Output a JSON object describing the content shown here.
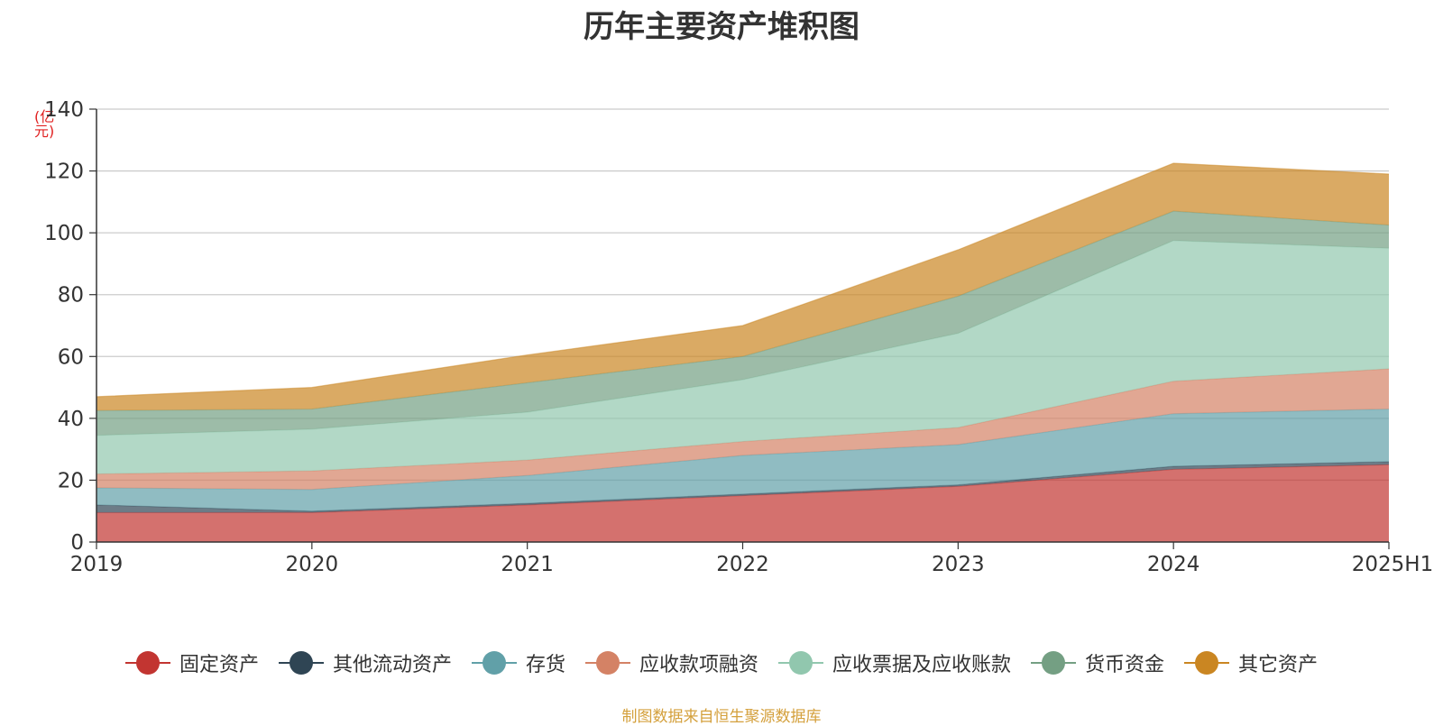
{
  "chart_data": {
    "type": "area",
    "stacked": true,
    "title": "历年主要资产堆积图",
    "unit_label": "(亿元)",
    "x": [
      "2019",
      "2020",
      "2021",
      "2022",
      "2023",
      "2024",
      "2025H1"
    ],
    "ylim": [
      0,
      140
    ],
    "yticks": [
      0,
      20,
      40,
      60,
      80,
      100,
      120,
      140
    ],
    "grid": true,
    "legend_position": "bottom",
    "series": [
      {
        "name": "固定资产",
        "color": "#c23531",
        "values": [
          9.5,
          9.5,
          12,
          15,
          18,
          23.5,
          25
        ]
      },
      {
        "name": "其他流动资产",
        "color": "#2f4554",
        "values": [
          2.5,
          0.5,
          0.5,
          0.5,
          0.5,
          1,
          1
        ]
      },
      {
        "name": "存货",
        "color": "#61a0a8",
        "values": [
          5.5,
          7,
          9,
          12.5,
          13,
          17,
          17
        ]
      },
      {
        "name": "应收款项融资",
        "color": "#d48265",
        "values": [
          4.5,
          6,
          5,
          4.5,
          5.5,
          10.5,
          13
        ]
      },
      {
        "name": "应收票据及应收账款",
        "color": "#91c7ae",
        "values": [
          12.5,
          13.5,
          15.5,
          20,
          30.5,
          45.5,
          39
        ]
      },
      {
        "name": "货币资金",
        "color": "#749f83",
        "values": [
          8,
          6.5,
          9.5,
          7.5,
          12,
          9.5,
          7.5
        ]
      },
      {
        "name": "其它资产",
        "color": "#ca8622",
        "values": [
          4.5,
          7,
          9,
          10,
          15,
          15.5,
          16.5
        ]
      }
    ]
  },
  "source_text": "制图数据来自恒生聚源数据库"
}
